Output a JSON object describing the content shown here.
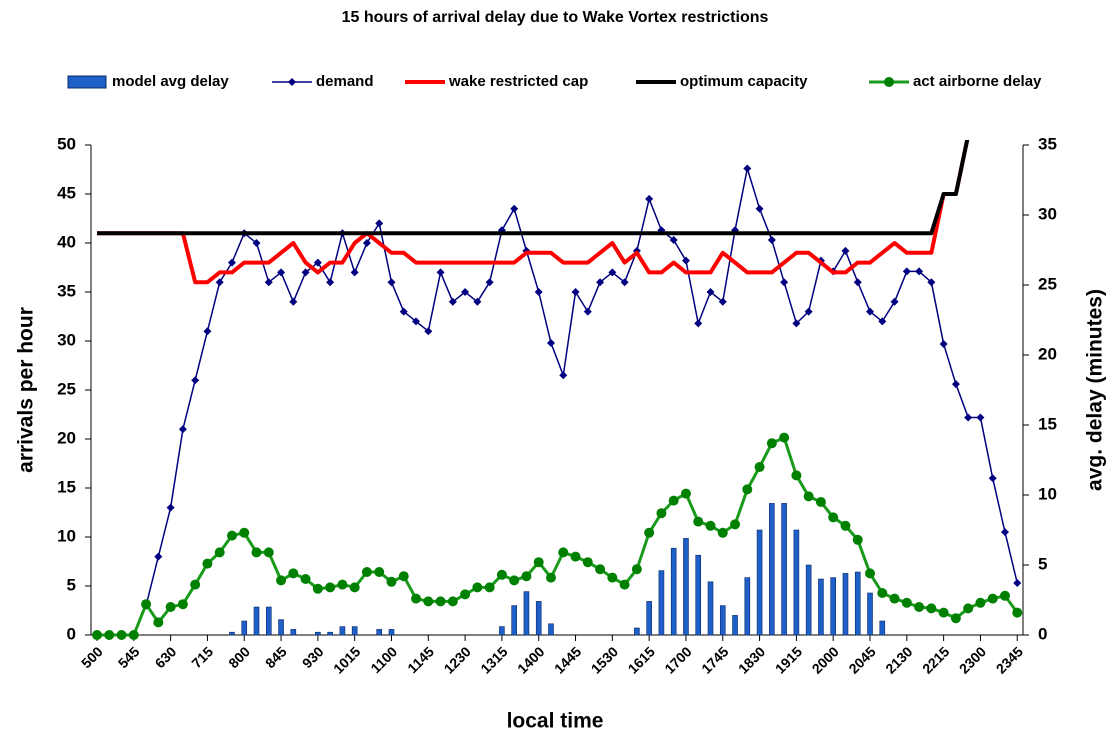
{
  "chart_data": {
    "type": "combo",
    "title": "15 hours of arrival delay due to Wake Vortex restrictions",
    "x_label": "local time",
    "y_label": "arrivals per hour",
    "y2_label": "avg. delay (minutes)",
    "categories": [
      "500",
      null,
      null,
      "545",
      null,
      null,
      "630",
      null,
      null,
      "715",
      null,
      null,
      "800",
      null,
      null,
      "845",
      null,
      null,
      "930",
      null,
      null,
      "1015",
      null,
      null,
      "1100",
      null,
      null,
      "1145",
      null,
      null,
      "1230",
      null,
      null,
      "1315",
      null,
      null,
      "1400",
      null,
      null,
      "1445",
      null,
      null,
      "1530",
      null,
      null,
      "1615",
      null,
      null,
      "1700",
      null,
      null,
      "1745",
      null,
      null,
      "1830",
      null,
      null,
      "1915",
      null,
      null,
      "2000",
      null,
      null,
      "2045",
      null,
      null,
      "2130",
      null,
      null,
      "2215",
      null,
      null,
      "2300",
      null,
      null,
      "2345"
    ],
    "ylim": [
      0,
      50
    ],
    "yticks": [
      0,
      5,
      10,
      15,
      20,
      25,
      30,
      35,
      40,
      45,
      50
    ],
    "y2lim": [
      0,
      35
    ],
    "y2ticks": [
      0,
      5,
      10,
      15,
      20,
      25,
      30,
      35
    ],
    "legend": "top",
    "series": [
      {
        "name": "model avg delay",
        "type": "bar",
        "axis": "y2",
        "color": "#1f5fc8",
        "values": [
          0,
          0,
          0,
          0,
          0,
          0,
          0,
          0,
          0,
          0,
          0,
          0.2,
          1.0,
          2.0,
          2.0,
          1.1,
          0.4,
          0,
          0.2,
          0.2,
          0.6,
          0.6,
          0,
          0.4,
          0.4,
          0,
          0,
          0,
          0,
          0,
          0,
          0,
          0,
          0.6,
          2.1,
          3.1,
          2.4,
          0.8,
          0,
          0,
          0,
          0,
          0,
          0,
          0.5,
          2.4,
          4.6,
          6.2,
          6.9,
          5.7,
          3.8,
          2.1,
          1.4,
          4.1,
          7.5,
          9.4,
          9.4,
          7.5,
          5.0,
          4.0,
          4.1,
          4.4,
          4.5,
          3.0,
          1.0,
          0,
          0,
          0,
          0,
          0,
          0,
          0,
          0,
          0,
          0,
          0
        ]
      },
      {
        "name": "demand",
        "type": "line",
        "marker": "diamond",
        "color": "#000080",
        "values": [
          0,
          0,
          0,
          0,
          3,
          8,
          13,
          21,
          26,
          31,
          36,
          38,
          41,
          40,
          36,
          37,
          34,
          37,
          38,
          36,
          41,
          37,
          40,
          42,
          36,
          33,
          32,
          31,
          37,
          34,
          35,
          34,
          36,
          41.3,
          43.5,
          39.2,
          35,
          29.8,
          26.5,
          35,
          33,
          36,
          37,
          36,
          39.2,
          44.5,
          41.3,
          40.3,
          38.2,
          31.8,
          35,
          34,
          41.3,
          47.6,
          43.5,
          40.3,
          36,
          31.8,
          33,
          38.2,
          37.1,
          39.2,
          36,
          33,
          32,
          34,
          37.1,
          37.1,
          36,
          29.7,
          25.6,
          22.2,
          22.2,
          16,
          10.5,
          5.3
        ]
      },
      {
        "name": "wake restricted cap",
        "type": "line",
        "marker": null,
        "color": "#ff0000",
        "values": [
          41,
          41,
          41,
          41,
          41,
          41,
          41,
          41,
          36,
          36,
          37,
          37,
          38,
          38,
          38,
          39,
          40,
          38,
          37,
          38,
          38,
          40,
          41,
          40,
          39,
          39,
          38,
          38,
          38,
          38,
          38,
          38,
          38,
          38,
          38,
          39,
          39,
          39,
          38,
          38,
          38,
          39,
          40,
          38,
          39,
          37,
          37,
          38,
          37,
          37,
          37,
          39,
          38,
          37,
          37,
          37,
          38,
          39,
          39,
          38,
          37,
          37,
          38,
          38,
          39,
          40,
          39,
          39,
          39,
          45,
          45,
          51,
          null,
          null,
          null,
          null
        ]
      },
      {
        "name": "optimum capacity",
        "type": "line",
        "marker": null,
        "color": "#000000",
        "values": [
          41,
          41,
          41,
          41,
          41,
          41,
          41,
          41,
          41,
          41,
          41,
          41,
          41,
          41,
          41,
          41,
          41,
          41,
          41,
          41,
          41,
          41,
          41,
          41,
          41,
          41,
          41,
          41,
          41,
          41,
          41,
          41,
          41,
          41,
          41,
          41,
          41,
          41,
          41,
          41,
          41,
          41,
          41,
          41,
          41,
          41,
          41,
          41,
          41,
          41,
          41,
          41,
          41,
          41,
          41,
          41,
          41,
          41,
          41,
          41,
          41,
          41,
          41,
          41,
          41,
          41,
          41,
          41,
          41,
          45,
          45,
          51,
          null,
          null,
          null,
          null
        ]
      },
      {
        "name": "act airborne delay",
        "type": "line",
        "axis": "y2",
        "marker": "circle",
        "color": "#1a9a1a",
        "values": [
          0,
          0,
          0,
          0,
          2.2,
          0.9,
          2.0,
          2.2,
          3.6,
          5.1,
          5.9,
          7.1,
          7.3,
          5.9,
          5.9,
          3.9,
          4.4,
          4.0,
          3.3,
          3.4,
          3.6,
          3.4,
          4.5,
          4.5,
          3.8,
          4.2,
          2.6,
          2.4,
          2.4,
          2.4,
          2.9,
          3.4,
          3.4,
          4.3,
          3.9,
          4.2,
          5.2,
          4.1,
          5.9,
          5.6,
          5.2,
          4.7,
          4.1,
          3.6,
          4.7,
          7.3,
          8.7,
          9.6,
          10.1,
          8.1,
          7.8,
          7.3,
          7.9,
          10.4,
          12.0,
          13.7,
          14.1,
          11.4,
          9.9,
          9.5,
          8.4,
          7.8,
          6.8,
          4.4,
          3.0,
          2.6,
          2.3,
          2.0,
          1.9,
          1.6,
          1.2,
          1.9,
          2.3,
          2.6,
          2.8,
          1.6
        ]
      }
    ]
  }
}
